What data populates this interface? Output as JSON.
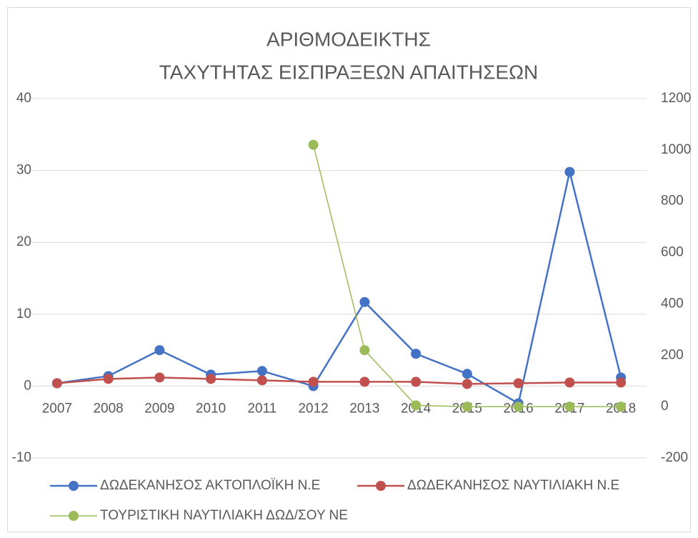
{
  "chart_data": {
    "type": "line",
    "title": [
      "ΑΡΙΘΜΟΔΕΙΚΤΗΣ",
      "ΤΑΧΥΤΗΤΑΣ ΕΙΣΠΡΑΞΕΩΝ ΑΠΑΙΤΗΣΕΩΝ"
    ],
    "categories": [
      "2007",
      "2008",
      "2009",
      "2010",
      "2011",
      "2012",
      "2013",
      "2014",
      "2015",
      "2016",
      "2017",
      "2018"
    ],
    "series": [
      {
        "name": "ΔΩΔΕΚΑΝΗΣΟΣ ΑΚΤΟΠΛΟΪΚΗ Ν.Ε",
        "color": "#4472c4",
        "values": [
          0.4,
          1.4,
          5.0,
          1.6,
          2.1,
          0.0,
          11.7,
          4.5,
          1.7,
          -2.4,
          29.8,
          1.2
        ]
      },
      {
        "name": "ΔΩΔΕΚΑΝΗΣΟΣ ΝΑΥΤΙΛΙΑΚΗ Ν.Ε",
        "color": "#c0504d",
        "values": [
          0.4,
          1.0,
          1.2,
          1.0,
          0.8,
          0.6,
          0.6,
          0.6,
          0.3,
          0.4,
          0.5,
          0.5
        ]
      },
      {
        "name": "ΤΟΥΡΙΣΤΙΚΗ ΝΑΥΤΙΛΙΑΚΗ ΔΩΔ/ΣΟΥ ΝΕ",
        "color": "#9bbb59",
        "axis": "y2",
        "values": [
          null,
          null,
          null,
          null,
          null,
          1020,
          220,
          5,
          0,
          0,
          0,
          0
        ]
      }
    ],
    "ylim": [
      -10,
      40
    ],
    "yticks": [
      -10,
      0,
      10,
      20,
      30,
      40
    ],
    "y2lim": [
      -200,
      1200
    ],
    "y2ticks": [
      -200,
      0,
      200,
      400,
      600,
      800,
      1000,
      1200
    ],
    "grid": true,
    "legend": "bottom"
  }
}
